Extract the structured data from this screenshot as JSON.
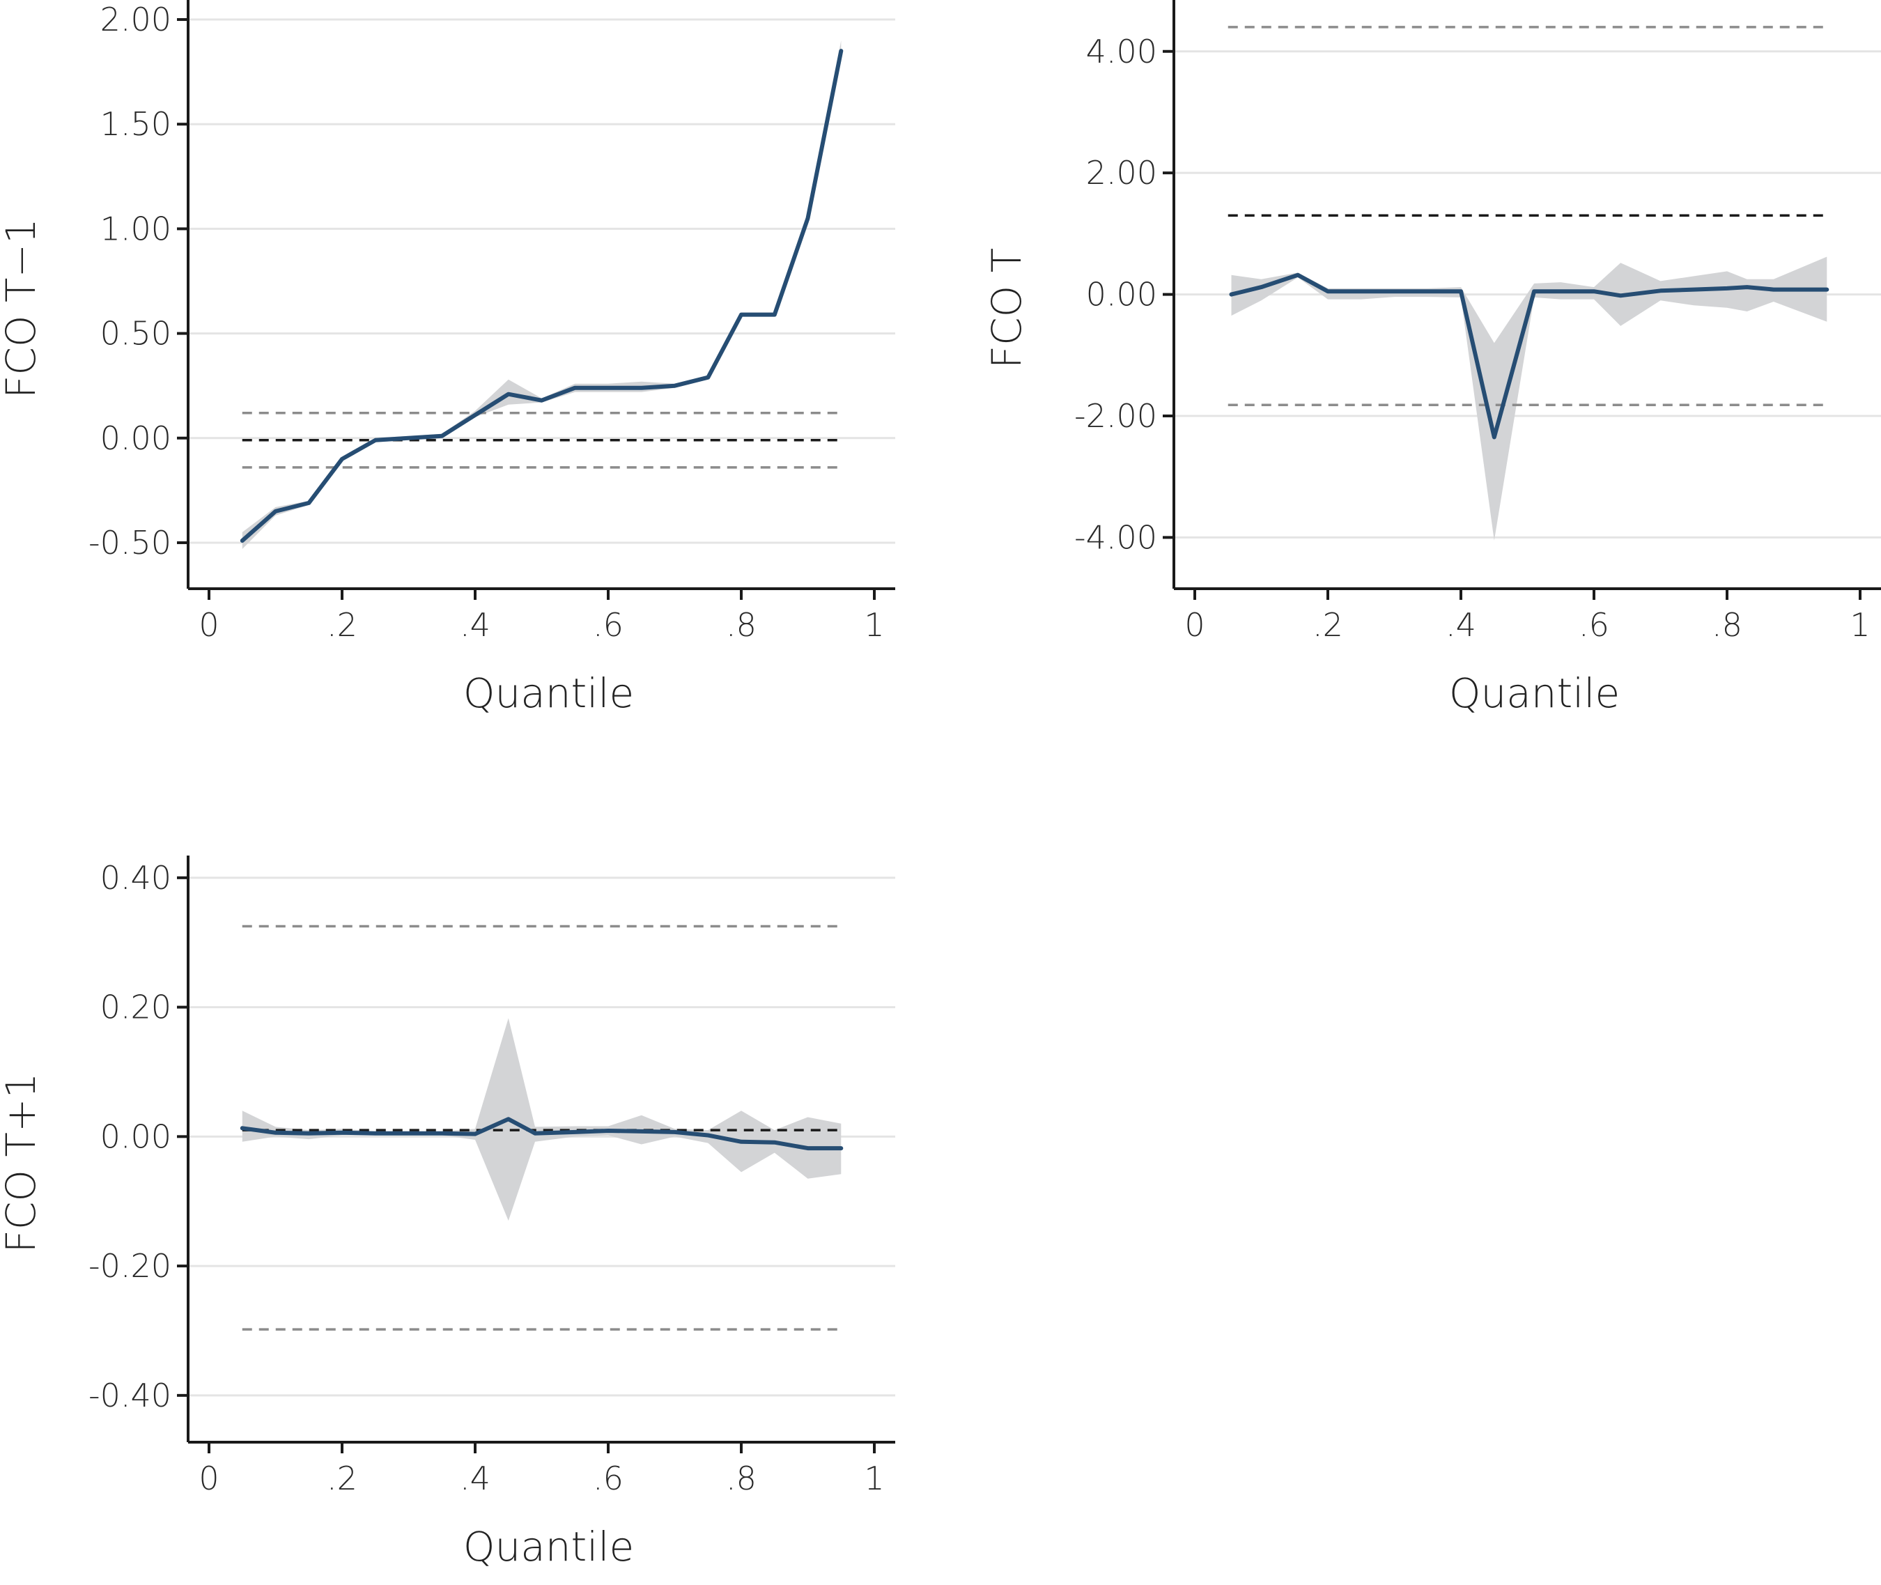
{
  "colors": {
    "line": "#264d73",
    "band": "#d3d4d6",
    "ref_inner": "#1a1a1a",
    "ref_outer": "#8c8c8c"
  },
  "chart_data": [
    {
      "type": "line",
      "xlabel": "Quantile",
      "ylabel": "FCO T−1",
      "xlim": [
        0,
        1
      ],
      "ylim": [
        -0.62,
        2.08
      ],
      "xticks": [
        0,
        0.2,
        0.4,
        0.6,
        0.8,
        1
      ],
      "xtick_labels": [
        "0",
        ".2",
        ".4",
        ".6",
        ".8",
        "1"
      ],
      "yticks": [
        -0.5,
        0,
        0.5,
        1,
        1.5,
        2
      ],
      "ytick_labels": [
        "-0.50",
        "0.00",
        "0.50",
        "1.00",
        "1.50",
        "2.00"
      ],
      "grid": true,
      "x": [
        0.05,
        0.1,
        0.15,
        0.2,
        0.25,
        0.3,
        0.35,
        0.4,
        0.45,
        0.5,
        0.55,
        0.6,
        0.65,
        0.7,
        0.75,
        0.8,
        0.85,
        0.9,
        0.95
      ],
      "values": [
        -0.49,
        -0.35,
        -0.31,
        -0.1,
        -0.01,
        0.0,
        0.01,
        0.11,
        0.21,
        0.18,
        0.24,
        0.24,
        0.24,
        0.25,
        0.29,
        0.59,
        0.59,
        1.05,
        1.85
      ],
      "ci_lower": [
        -0.53,
        -0.37,
        -0.32,
        -0.11,
        -0.02,
        -0.01,
        0.0,
        0.1,
        0.16,
        0.17,
        0.22,
        0.22,
        0.22,
        0.24,
        0.28,
        0.58,
        0.58,
        1.04,
        1.83
      ],
      "ci_upper": [
        -0.45,
        -0.33,
        -0.3,
        -0.09,
        0.0,
        0.01,
        0.02,
        0.13,
        0.28,
        0.19,
        0.26,
        0.26,
        0.27,
        0.26,
        0.3,
        0.6,
        0.6,
        1.06,
        1.9
      ],
      "reference_lines": [
        {
          "y": -0.01,
          "style": "inner"
        },
        {
          "y": 0.12,
          "style": "outer"
        },
        {
          "y": -0.14,
          "style": "outer"
        }
      ],
      "ref_x_range": [
        0.05,
        0.95
      ]
    },
    {
      "type": "line",
      "xlabel": "Quantile",
      "ylabel": "FCO T",
      "xlim": [
        0,
        1
      ],
      "ylim": [
        -4.5,
        4.8
      ],
      "xticks": [
        0,
        0.2,
        0.4,
        0.6,
        0.8,
        1
      ],
      "xtick_labels": [
        "0",
        ".2",
        ".4",
        ".6",
        ".8",
        "1"
      ],
      "yticks": [
        -4,
        -2,
        0,
        2,
        4
      ],
      "ytick_labels": [
        "-4.00",
        "-2.00",
        "0.00",
        "2.00",
        "4.00"
      ],
      "grid": true,
      "x": [
        0.055,
        0.1,
        0.155,
        0.2,
        0.25,
        0.3,
        0.35,
        0.4,
        0.45,
        0.51,
        0.55,
        0.6,
        0.64,
        0.7,
        0.75,
        0.8,
        0.83,
        0.87,
        0.95
      ],
      "values": [
        0.0,
        0.12,
        0.32,
        0.05,
        0.05,
        0.05,
        0.05,
        0.05,
        -2.35,
        0.05,
        0.05,
        0.05,
        -0.02,
        0.06,
        0.08,
        0.1,
        0.12,
        0.08,
        0.08
      ],
      "ci_lower": [
        -0.35,
        -0.1,
        0.28,
        -0.08,
        -0.08,
        -0.04,
        -0.04,
        -0.05,
        -4.05,
        -0.05,
        -0.08,
        -0.08,
        -0.52,
        -0.1,
        -0.18,
        -0.22,
        -0.28,
        -0.12,
        -0.45
      ],
      "ci_upper": [
        0.32,
        0.25,
        0.36,
        0.1,
        0.1,
        0.1,
        0.1,
        0.12,
        -0.8,
        0.18,
        0.2,
        0.12,
        0.52,
        0.22,
        0.3,
        0.38,
        0.25,
        0.25,
        0.62
      ],
      "reference_lines": [
        {
          "y": 1.3,
          "style": "inner"
        },
        {
          "y": 4.4,
          "style": "outer"
        },
        {
          "y": -1.82,
          "style": "outer"
        }
      ],
      "ref_x_range": [
        0.05,
        0.95
      ]
    },
    {
      "type": "line",
      "xlabel": "Quantile",
      "ylabel": "FCO T+1",
      "xlim": [
        0,
        1
      ],
      "ylim": [
        -0.44,
        0.43
      ],
      "xticks": [
        0,
        0.2,
        0.4,
        0.6,
        0.8,
        1
      ],
      "xtick_labels": [
        "0",
        ".2",
        ".4",
        ".6",
        ".8",
        "1"
      ],
      "yticks": [
        -0.4,
        -0.2,
        0,
        0.2,
        0.4
      ],
      "ytick_labels": [
        "-0.40",
        "-0.20",
        "0.00",
        "0.20",
        "0.40"
      ],
      "grid": true,
      "x": [
        0.05,
        0.1,
        0.15,
        0.2,
        0.25,
        0.3,
        0.35,
        0.4,
        0.45,
        0.49,
        0.55,
        0.6,
        0.65,
        0.7,
        0.75,
        0.8,
        0.85,
        0.9,
        0.95
      ],
      "values": [
        0.013,
        0.006,
        0.005,
        0.006,
        0.005,
        0.005,
        0.005,
        0.004,
        0.027,
        0.005,
        0.007,
        0.009,
        0.008,
        0.007,
        0.002,
        -0.008,
        -0.009,
        -0.018,
        -0.018
      ],
      "ci_lower": [
        -0.008,
        0.0,
        -0.004,
        0.002,
        0.002,
        0.002,
        0.002,
        -0.005,
        -0.13,
        -0.008,
        0.0,
        0.002,
        -0.012,
        0.0,
        -0.01,
        -0.055,
        -0.025,
        -0.065,
        -0.058
      ],
      "ci_upper": [
        0.04,
        0.015,
        0.01,
        0.012,
        0.008,
        0.008,
        0.008,
        0.012,
        0.183,
        0.015,
        0.016,
        0.016,
        0.033,
        0.012,
        0.01,
        0.04,
        0.01,
        0.03,
        0.02
      ],
      "reference_lines": [
        {
          "y": 0.01,
          "style": "inner"
        },
        {
          "y": 0.325,
          "style": "outer"
        },
        {
          "y": -0.298,
          "style": "outer"
        }
      ],
      "ref_x_range": [
        0.05,
        0.95
      ]
    }
  ]
}
